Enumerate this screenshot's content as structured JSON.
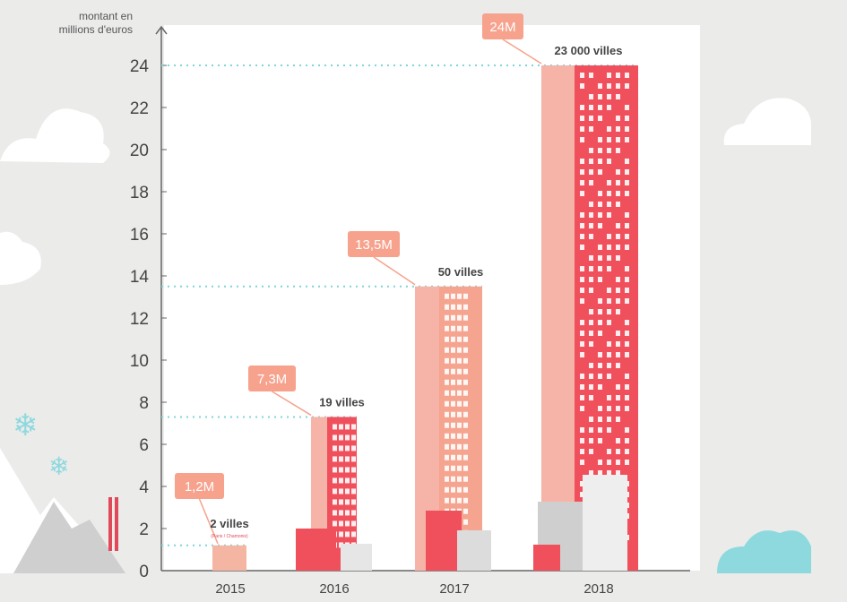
{
  "chart_data": {
    "type": "bar",
    "ylabel": "montant en millions d'euros",
    "ylim": [
      0,
      24
    ],
    "yticks": [
      0,
      2,
      4,
      6,
      8,
      10,
      12,
      14,
      16,
      18,
      20,
      22,
      24
    ],
    "grid": false,
    "categories": [
      "2015",
      "2016",
      "2017",
      "2018"
    ],
    "values": [
      1.2,
      7.3,
      13.5,
      24
    ],
    "value_labels": [
      "1,2M",
      "7,3M",
      "13,5M",
      "24M"
    ],
    "city_counts": [
      "2 villes",
      "19 villes",
      "50 villes",
      "23 000 villes"
    ],
    "city_notes": [
      "(Paris / Chamonix)",
      "",
      "",
      ""
    ],
    "colors": {
      "bar_light": "#f6b3a8",
      "bar_2015": "#f5b5a3",
      "bar_2016": "#f0505c",
      "bar_2017": "#f5a48f",
      "bar_2018": "#f0505c",
      "label_box": "#f6a28d",
      "guide": "#7fd4d8",
      "background": "#ebebea",
      "plot": "#ffffff"
    }
  }
}
